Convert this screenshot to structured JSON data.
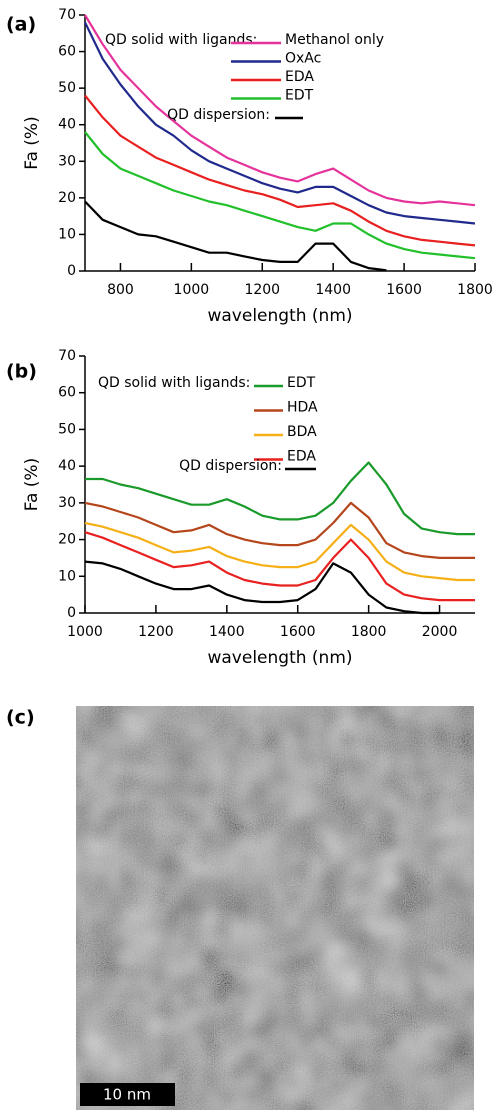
{
  "chart_data": [
    {
      "type": "line",
      "panel_label": "(a)",
      "xlabel": "wavelength (nm)",
      "ylabel": "Fa (%)",
      "legend_title": "QD solid with ligands:",
      "x": [
        700,
        750,
        800,
        850,
        900,
        950,
        1000,
        1050,
        1100,
        1150,
        1200,
        1250,
        1300,
        1350,
        1400,
        1450,
        1500,
        1550,
        1600,
        1650,
        1700,
        1750,
        1800
      ],
      "xlim": [
        700,
        1800
      ],
      "xticks": [
        800,
        1000,
        1200,
        1400,
        1600,
        1800
      ],
      "ylim": [
        0,
        70
      ],
      "yticks": [
        0,
        10,
        20,
        30,
        40,
        50,
        60,
        70
      ],
      "series": [
        {
          "name": "Methanol only",
          "color": "#e5339b",
          "values": [
            70,
            62,
            55,
            50,
            45,
            41,
            37,
            34,
            31,
            29,
            27,
            25.5,
            24.5,
            26.5,
            28,
            25,
            22,
            20,
            19,
            18.5,
            19,
            18.5,
            18
          ]
        },
        {
          "name": "OxAc",
          "color": "#1f2a8c",
          "values": [
            68,
            58,
            51,
            45,
            40,
            37,
            33,
            30,
            28,
            26,
            24,
            22.5,
            21.5,
            23,
            23,
            20.5,
            18,
            16,
            15,
            14.5,
            14,
            13.5,
            13
          ]
        },
        {
          "name": "EDA",
          "color": "#e8201f",
          "values": [
            48,
            42,
            37,
            34,
            31,
            29,
            27,
            25,
            23.5,
            22,
            21,
            19.5,
            17.5,
            18,
            18.5,
            16.5,
            13.5,
            11,
            9.5,
            8.5,
            8,
            7.5,
            7
          ]
        },
        {
          "name": "EDT",
          "color": "#22c02a",
          "values": [
            38,
            32,
            28,
            26,
            24,
            22,
            20.5,
            19,
            18,
            16.5,
            15,
            13.5,
            12,
            11,
            13,
            13,
            10,
            7.5,
            6,
            5,
            4.5,
            4,
            3.5
          ]
        },
        {
          "name": "QD dispersion:",
          "color": "#000000",
          "values": [
            19,
            14,
            12,
            10,
            9.5,
            8,
            6.5,
            5,
            5,
            4,
            3,
            2.5,
            2.5,
            7.5,
            7.5,
            2.5,
            0.8,
            0.2,
            null,
            null,
            null,
            null,
            null
          ]
        }
      ]
    },
    {
      "type": "line",
      "panel_label": "(b)",
      "xlabel": "wavelength (nm)",
      "ylabel": "Fa (%)",
      "legend_title": "QD solid with ligands:",
      "x": [
        1000,
        1050,
        1100,
        1150,
        1200,
        1250,
        1300,
        1350,
        1400,
        1450,
        1500,
        1550,
        1600,
        1650,
        1700,
        1750,
        1800,
        1850,
        1900,
        1950,
        2000,
        2050,
        2100
      ],
      "xlim": [
        1000,
        2100
      ],
      "xticks": [
        1000,
        1200,
        1400,
        1600,
        1800,
        2000
      ],
      "ylim": [
        0,
        70
      ],
      "yticks": [
        0,
        10,
        20,
        30,
        40,
        50,
        60,
        70
      ],
      "series": [
        {
          "name": "EDT",
          "color": "#1a9a2a",
          "values": [
            36.5,
            36.5,
            35,
            34,
            32.5,
            31,
            29.5,
            29.5,
            31,
            29,
            26.5,
            25.5,
            25.5,
            26.5,
            30,
            36,
            41,
            35,
            27,
            23,
            22,
            21.5,
            21.5
          ]
        },
        {
          "name": "HDA",
          "color": "#b5461b",
          "values": [
            30,
            29,
            27.5,
            26,
            24,
            22,
            22.5,
            24,
            21.5,
            20,
            19,
            18.5,
            18.5,
            20,
            24.5,
            30,
            26,
            19,
            16.5,
            15.5,
            15,
            15,
            15
          ]
        },
        {
          "name": "BDA",
          "color": "#f5b018",
          "values": [
            24.5,
            23.5,
            22,
            20.5,
            18.5,
            16.5,
            17,
            18,
            15.5,
            14,
            13,
            12.5,
            12.5,
            14,
            19,
            24,
            20,
            14,
            11,
            10,
            9.5,
            9,
            9
          ]
        },
        {
          "name": "EDA",
          "color": "#e8201f",
          "values": [
            22,
            20.5,
            18.5,
            16.5,
            14.5,
            12.5,
            13,
            14,
            11,
            9,
            8,
            7.5,
            7.5,
            9,
            15,
            20,
            15,
            8,
            5,
            4,
            3.5,
            3.5,
            3.5
          ]
        },
        {
          "name": "QD dispersion:",
          "color": "#000000",
          "values": [
            14,
            13.5,
            12,
            10,
            8,
            6.5,
            6.5,
            7.5,
            5,
            3.5,
            3,
            3,
            3.5,
            6.5,
            13.5,
            11,
            5,
            1.5,
            0.5,
            0,
            0,
            null,
            null
          ]
        }
      ]
    }
  ],
  "image_panel": {
    "panel_label": "(c)",
    "scale_bar": "10 nm"
  }
}
